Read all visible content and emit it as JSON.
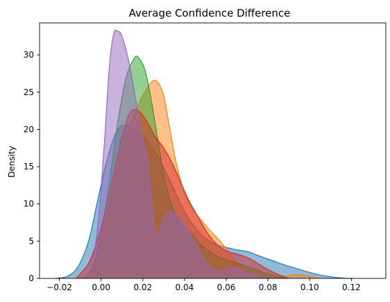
{
  "chart_data": {
    "type": "area",
    "title": "Average Confidence Difference",
    "xlabel": "",
    "ylabel": "Density",
    "xlim": [
      -0.0295,
      0.1365
    ],
    "ylim": [
      0,
      34.3
    ],
    "xticks": [
      -0.02,
      0.0,
      0.02,
      0.04,
      0.06,
      0.08,
      0.1,
      0.12
    ],
    "xtick_labels": [
      "−0.02",
      "0.00",
      "0.02",
      "0.04",
      "0.06",
      "0.08",
      "0.10",
      "0.12"
    ],
    "yticks": [
      0,
      5,
      10,
      15,
      20,
      25,
      30
    ],
    "ytick_labels": [
      "0",
      "5",
      "10",
      "15",
      "20",
      "25",
      "30"
    ],
    "grid": false,
    "legend": "none",
    "series": [
      {
        "color": "#1f77b4",
        "x": [
          -0.022,
          -0.016,
          -0.011,
          -0.006,
          -0.002,
          0.002,
          0.006,
          0.01,
          0.016,
          0.022,
          0.028,
          0.034,
          0.04,
          0.046,
          0.052,
          0.058,
          0.064,
          0.07,
          0.076,
          0.082,
          0.088,
          0.094,
          0.1,
          0.106,
          0.112,
          0.117,
          0.121
        ],
        "y": [
          0,
          0.3,
          1.6,
          5.0,
          10.0,
          15.0,
          18.8,
          20.5,
          20.0,
          18.5,
          16.0,
          12.5,
          9.0,
          6.5,
          5.0,
          4.3,
          3.9,
          3.6,
          3.0,
          2.4,
          1.8,
          1.3,
          0.8,
          0.4,
          0.15,
          0.03,
          0
        ]
      },
      {
        "color": "#ff7f0e",
        "x": [
          -0.01,
          -0.004,
          0.0,
          0.004,
          0.008,
          0.012,
          0.016,
          0.02,
          0.024,
          0.027,
          0.03,
          0.033,
          0.036,
          0.04,
          0.044,
          0.048,
          0.052,
          0.056,
          0.06,
          0.064,
          0.068,
          0.072,
          0.076,
          0.082,
          0.088,
          0.094,
          0.1,
          0.105
        ],
        "y": [
          0,
          1.5,
          5.0,
          10.0,
          15.0,
          19.0,
          22.0,
          24.5,
          26.3,
          26.4,
          24.5,
          20.0,
          15.5,
          11.5,
          9.3,
          7.8,
          6.5,
          5.3,
          4.0,
          2.5,
          1.3,
          0.6,
          0.3,
          0.15,
          0.3,
          0.5,
          0.3,
          0
        ]
      },
      {
        "color": "#2ca02c",
        "x": [
          -0.008,
          -0.004,
          0.0,
          0.004,
          0.008,
          0.012,
          0.016,
          0.018,
          0.021,
          0.024,
          0.027,
          0.03,
          0.033,
          0.036,
          0.04,
          0.044,
          0.048,
          0.054,
          0.06,
          0.066,
          0.072,
          0.078,
          0.084,
          0.09
        ],
        "y": [
          0,
          1.5,
          6.0,
          13.0,
          21.0,
          27.0,
          29.6,
          29.6,
          28.0,
          24.0,
          19.0,
          14.0,
          10.5,
          8.5,
          7.0,
          5.8,
          4.5,
          3.2,
          2.5,
          2.0,
          1.4,
          0.8,
          0.3,
          0
        ]
      },
      {
        "color": "#d62728",
        "x": [
          -0.012,
          -0.006,
          -0.002,
          0.002,
          0.006,
          0.01,
          0.014,
          0.018,
          0.022,
          0.026,
          0.03,
          0.034,
          0.038,
          0.042,
          0.046,
          0.05,
          0.054,
          0.058,
          0.062,
          0.066,
          0.07,
          0.074,
          0.078,
          0.082,
          0.086,
          0.09
        ],
        "y": [
          0,
          2.0,
          5.0,
          9.0,
          14.0,
          19.0,
          22.3,
          22.5,
          21.0,
          19.0,
          17.5,
          15.5,
          13.0,
          10.5,
          8.5,
          6.5,
          5.0,
          4.0,
          3.5,
          3.2,
          2.8,
          2.2,
          1.5,
          0.9,
          0.4,
          0
        ]
      },
      {
        "color": "#9467bd",
        "x": [
          -0.01,
          -0.005,
          -0.002,
          0.0,
          0.002,
          0.004,
          0.006,
          0.008,
          0.01,
          0.013,
          0.016,
          0.019,
          0.022,
          0.024,
          0.026,
          0.028,
          0.03,
          0.033,
          0.036,
          0.04,
          0.044,
          0.048,
          0.052,
          0.056,
          0.06,
          0.064,
          0.068,
          0.072,
          0.076,
          0.08
        ],
        "y": [
          0,
          1.5,
          6.0,
          12.0,
          20.0,
          28.5,
          32.8,
          33.2,
          32.5,
          29.5,
          25.0,
          20.0,
          16.0,
          11.0,
          6.7,
          6.0,
          8.0,
          9.0,
          8.6,
          7.2,
          5.3,
          3.2,
          1.6,
          1.0,
          1.2,
          1.4,
          1.0,
          0.5,
          0.2,
          0
        ]
      }
    ]
  }
}
